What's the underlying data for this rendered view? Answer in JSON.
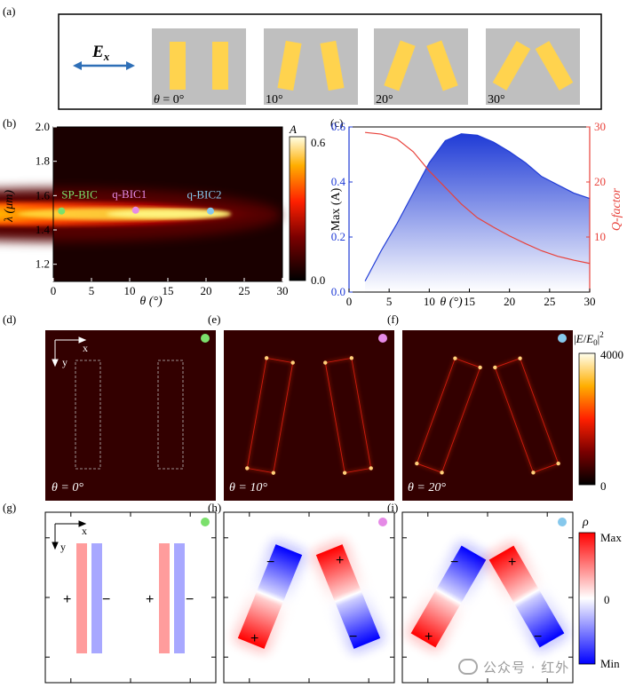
{
  "figure": {
    "panel_labels": [
      "(a)",
      "(b)",
      "(c)",
      "(d)",
      "(e)",
      "(f)",
      "(g)",
      "(h)",
      "(i)"
    ],
    "panel_a": {
      "polarization_label": "E",
      "polarization_sub": "x",
      "angles": [
        {
          "label": "θ = 0°",
          "theta": 0
        },
        {
          "label": "10°",
          "theta": 10
        },
        {
          "label": "20°",
          "theta": 20
        },
        {
          "label": "30°",
          "theta": 30
        }
      ],
      "colors": {
        "bar": "#ffd34e",
        "bg": "#bfbfbf",
        "arrow": "#2e6fb7"
      }
    },
    "panel_b": {
      "xlabel": "θ (°)",
      "ylabel": "λ (μm)",
      "xticks": [
        "0",
        "5",
        "10",
        "15",
        "20",
        "25",
        "30"
      ],
      "yticks": [
        "1.2",
        "1.4",
        "1.6",
        "1.8",
        "2.0"
      ],
      "markers": [
        {
          "label": "SP-BIC",
          "theta": 0.5,
          "lambda": 1.51,
          "color": "#7be06c",
          "text_color": "#7be06c"
        },
        {
          "label": "q-BIC1",
          "theta": 10.2,
          "lambda": 1.515,
          "color": "#e58ae6",
          "text_color": "#e58ae6"
        },
        {
          "label": "q-BIC2",
          "theta": 20,
          "lambda": 1.51,
          "color": "#86c8ec",
          "text_color": "#86c8ec"
        }
      ],
      "colorbar": {
        "label": "A",
        "max": "0.6",
        "min": "0.0"
      }
    },
    "panel_c": {
      "xlabel": "θ (°)",
      "ylabel_left": "Max (A)",
      "ylabel_right": "Q-factor",
      "xticks": [
        "0",
        "5",
        "10",
        "15",
        "20",
        "25",
        "30"
      ],
      "yticks_left": [
        "0.0",
        "0.2",
        "0.4",
        "0.6"
      ],
      "yticks_right": [
        "10",
        "20",
        "30"
      ],
      "colors": {
        "left": "#1f3bd6",
        "right": "#e8413a"
      }
    },
    "panel_def": {
      "labels": [
        "θ = 0°",
        "θ = 10°",
        "θ = 20°"
      ],
      "axis_x": "x",
      "axis_y": "y",
      "colorbar": {
        "label": "|E/E0|²",
        "max": "4000",
        "min": "0"
      },
      "dot_colors": [
        "#7be06c",
        "#e58ae6",
        "#86c8ec"
      ]
    },
    "panel_ghi": {
      "axis_x": "x",
      "axis_y": "y",
      "plus": "+",
      "minus": "−",
      "colorbar": {
        "label": "ρ",
        "max": "Max",
        "zero": "0",
        "min": "Min"
      }
    }
  },
  "chart_data": [
    {
      "type": "heatmap",
      "panel": "b",
      "title": "",
      "xlabel": "θ (°)",
      "ylabel": "λ (μm)",
      "xlim": [
        0,
        30
      ],
      "ylim": [
        1.1,
        2.0
      ],
      "zlabel": "A",
      "zlim": [
        0.0,
        0.6
      ],
      "annotations": [
        "SP-BIC",
        "q-BIC1",
        "q-BIC2"
      ]
    },
    {
      "type": "line",
      "panel": "c",
      "title": "",
      "xlabel": "θ (°)",
      "xlim": [
        0,
        30
      ],
      "series": [
        {
          "name": "Max (A)",
          "axis": "left",
          "ylim": [
            0.0,
            0.6
          ],
          "x": [
            2,
            4,
            6,
            8,
            10,
            12,
            14,
            16,
            18,
            20,
            22,
            24,
            26,
            28,
            30
          ],
          "y": [
            0.04,
            0.15,
            0.25,
            0.36,
            0.47,
            0.55,
            0.575,
            0.57,
            0.545,
            0.51,
            0.47,
            0.42,
            0.39,
            0.36,
            0.34
          ]
        },
        {
          "name": "Q-factor",
          "axis": "right",
          "ylim": [
            0,
            30
          ],
          "x": [
            2,
            4,
            6,
            8,
            10,
            12,
            14,
            16,
            18,
            20,
            22,
            24,
            26,
            28,
            30
          ],
          "y": [
            29,
            28.7,
            27.8,
            25.5,
            22,
            19,
            16,
            13.5,
            11.8,
            10.2,
            8.8,
            7.5,
            6.5,
            5.8,
            5.2
          ]
        }
      ]
    }
  ]
}
